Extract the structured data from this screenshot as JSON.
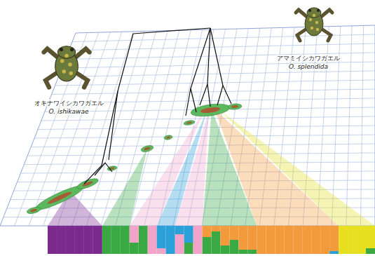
{
  "figure": {
    "species": [
      {
        "japanese": "オキナワイシカワガエル",
        "scientific": "O. ishikawae"
      },
      {
        "japanese": "アマミイシカワガエル",
        "scientific": "O. splendida"
      }
    ]
  },
  "chart_data": {
    "type": "bar",
    "stacked": true,
    "tick_labels": false,
    "ylim": [
      0,
      1
    ],
    "series": [
      {
        "color": "#7b2a8e",
        "values": [
          1,
          1,
          1,
          1,
          1,
          1,
          0,
          0,
          0,
          0,
          0,
          0,
          0,
          0,
          0,
          0,
          0,
          0,
          0,
          0,
          0,
          0,
          0,
          0,
          0,
          0,
          0,
          0,
          0,
          0,
          0,
          0,
          0,
          0,
          0,
          0
        ]
      },
      {
        "color": "#3aa843",
        "values": [
          0,
          0,
          0,
          0,
          0,
          0,
          1,
          1,
          1,
          0.4,
          1,
          0,
          0,
          0,
          0,
          0.4,
          0,
          0.6,
          0.8,
          0.3,
          0.5,
          0.15,
          0.15,
          0,
          0,
          0,
          0,
          0,
          0,
          0,
          0,
          0,
          0,
          0,
          0,
          0.2
        ]
      },
      {
        "color": "#f2a3c9",
        "values": [
          0,
          0,
          0,
          0,
          0,
          0,
          0,
          0,
          0,
          0.6,
          0,
          1,
          0.2,
          0,
          0.7,
          0,
          1,
          0,
          0,
          0,
          0,
          0,
          0,
          0,
          0,
          0,
          0,
          0,
          0,
          0,
          0,
          0,
          0,
          0,
          0,
          0
        ]
      },
      {
        "color": "#2a9fd8",
        "values": [
          0,
          0,
          0,
          0,
          0,
          0,
          0,
          0,
          0,
          0,
          0,
          0,
          0.8,
          1,
          0.3,
          0.6,
          0,
          0,
          0,
          0,
          0,
          0,
          0,
          0,
          0,
          0,
          0,
          0,
          0,
          0,
          0,
          0.1,
          0,
          0,
          0,
          0
        ]
      },
      {
        "color": "#f39a3c",
        "values": [
          0,
          0,
          0,
          0,
          0,
          0,
          0,
          0,
          0,
          0,
          0,
          0,
          0,
          0,
          0,
          0,
          0,
          0.4,
          0.2,
          0.7,
          0.5,
          0.85,
          0.85,
          1,
          1,
          1,
          1,
          1,
          1,
          1,
          1,
          0.9,
          0,
          0,
          0,
          0
        ]
      },
      {
        "color": "#e6e021",
        "values": [
          0,
          0,
          0,
          0,
          0,
          0,
          0,
          0,
          0,
          0,
          0,
          0,
          0,
          0,
          0,
          0,
          0,
          0,
          0,
          0,
          0,
          0,
          0,
          0,
          0,
          0,
          0,
          0,
          0,
          0,
          0,
          0,
          1,
          1,
          1,
          0.8
        ]
      }
    ]
  }
}
